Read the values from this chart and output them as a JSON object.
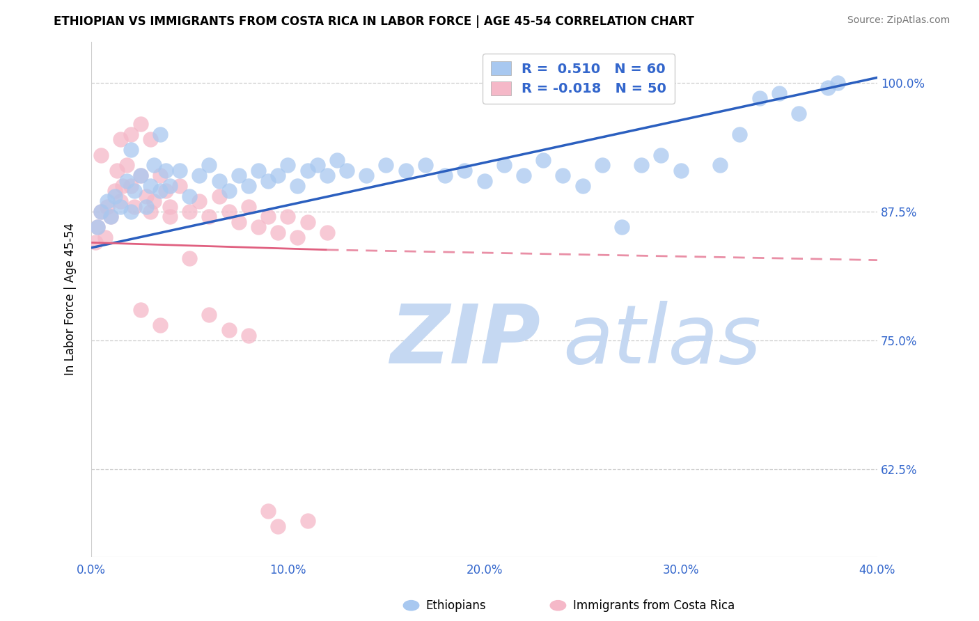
{
  "title": "ETHIOPIAN VS IMMIGRANTS FROM COSTA RICA IN LABOR FORCE | AGE 45-54 CORRELATION CHART",
  "source": "Source: ZipAtlas.com",
  "ylabel": "In Labor Force | Age 45-54",
  "xlim": [
    0.0,
    40.0
  ],
  "ylim": [
    54.0,
    104.0
  ],
  "yticks": [
    62.5,
    75.0,
    87.5,
    100.0
  ],
  "xticks": [
    0.0,
    10.0,
    20.0,
    30.0,
    40.0
  ],
  "legend_r_blue": "0.510",
  "legend_n_blue": "60",
  "legend_r_pink": "-0.018",
  "legend_n_pink": "50",
  "blue_color": "#A8C8F0",
  "pink_color": "#F5B8C8",
  "trend_blue": "#2B5FBF",
  "trend_pink": "#E06080",
  "watermark_zip": "ZIP",
  "watermark_atlas": "atlas",
  "watermark_color": "#C5D8F2",
  "blue_dots": [
    [
      0.3,
      86.0
    ],
    [
      0.5,
      87.5
    ],
    [
      0.8,
      88.5
    ],
    [
      1.0,
      87.0
    ],
    [
      1.2,
      89.0
    ],
    [
      1.5,
      88.0
    ],
    [
      1.8,
      90.5
    ],
    [
      2.0,
      87.5
    ],
    [
      2.2,
      89.5
    ],
    [
      2.5,
      91.0
    ],
    [
      2.8,
      88.0
    ],
    [
      3.0,
      90.0
    ],
    [
      3.2,
      92.0
    ],
    [
      3.5,
      89.5
    ],
    [
      3.8,
      91.5
    ],
    [
      4.0,
      90.0
    ],
    [
      4.5,
      91.5
    ],
    [
      5.0,
      89.0
    ],
    [
      5.5,
      91.0
    ],
    [
      6.0,
      92.0
    ],
    [
      6.5,
      90.5
    ],
    [
      7.0,
      89.5
    ],
    [
      7.5,
      91.0
    ],
    [
      8.0,
      90.0
    ],
    [
      8.5,
      91.5
    ],
    [
      9.0,
      90.5
    ],
    [
      9.5,
      91.0
    ],
    [
      10.0,
      92.0
    ],
    [
      10.5,
      90.0
    ],
    [
      11.0,
      91.5
    ],
    [
      11.5,
      92.0
    ],
    [
      12.0,
      91.0
    ],
    [
      12.5,
      92.5
    ],
    [
      13.0,
      91.5
    ],
    [
      14.0,
      91.0
    ],
    [
      15.0,
      92.0
    ],
    [
      16.0,
      91.5
    ],
    [
      17.0,
      92.0
    ],
    [
      18.0,
      91.0
    ],
    [
      19.0,
      91.5
    ],
    [
      20.0,
      90.5
    ],
    [
      21.0,
      92.0
    ],
    [
      22.0,
      91.0
    ],
    [
      23.0,
      92.5
    ],
    [
      24.0,
      91.0
    ],
    [
      25.0,
      90.0
    ],
    [
      26.0,
      92.0
    ],
    [
      27.0,
      86.0
    ],
    [
      28.0,
      92.0
    ],
    [
      29.0,
      93.0
    ],
    [
      30.0,
      91.5
    ],
    [
      32.0,
      92.0
    ],
    [
      33.0,
      95.0
    ],
    [
      34.0,
      98.5
    ],
    [
      35.0,
      99.0
    ],
    [
      36.0,
      97.0
    ],
    [
      37.5,
      99.5
    ],
    [
      38.0,
      100.0
    ],
    [
      3.5,
      95.0
    ],
    [
      2.0,
      93.5
    ]
  ],
  "pink_dots": [
    [
      0.2,
      84.5
    ],
    [
      0.3,
      86.0
    ],
    [
      0.5,
      87.5
    ],
    [
      0.7,
      85.0
    ],
    [
      0.8,
      88.0
    ],
    [
      1.0,
      87.0
    ],
    [
      1.2,
      89.5
    ],
    [
      1.3,
      91.5
    ],
    [
      1.5,
      88.5
    ],
    [
      1.6,
      90.0
    ],
    [
      1.8,
      92.0
    ],
    [
      2.0,
      90.0
    ],
    [
      2.2,
      88.0
    ],
    [
      2.5,
      91.0
    ],
    [
      2.8,
      89.0
    ],
    [
      3.0,
      87.5
    ],
    [
      3.2,
      88.5
    ],
    [
      3.5,
      91.0
    ],
    [
      3.8,
      89.5
    ],
    [
      4.0,
      88.0
    ],
    [
      4.5,
      90.0
    ],
    [
      5.0,
      87.5
    ],
    [
      5.5,
      88.5
    ],
    [
      6.0,
      87.0
    ],
    [
      6.5,
      89.0
    ],
    [
      7.0,
      87.5
    ],
    [
      7.5,
      86.5
    ],
    [
      8.0,
      88.0
    ],
    [
      8.5,
      86.0
    ],
    [
      9.0,
      87.0
    ],
    [
      9.5,
      85.5
    ],
    [
      10.0,
      87.0
    ],
    [
      10.5,
      85.0
    ],
    [
      11.0,
      86.5
    ],
    [
      12.0,
      85.5
    ],
    [
      1.5,
      94.5
    ],
    [
      2.0,
      95.0
    ],
    [
      2.5,
      96.0
    ],
    [
      3.0,
      94.5
    ],
    [
      0.5,
      93.0
    ],
    [
      4.0,
      87.0
    ],
    [
      5.0,
      83.0
    ],
    [
      6.0,
      77.5
    ],
    [
      7.0,
      76.0
    ],
    [
      8.0,
      75.5
    ],
    [
      2.5,
      78.0
    ],
    [
      3.5,
      76.5
    ],
    [
      9.0,
      58.5
    ],
    [
      9.5,
      57.0
    ],
    [
      11.0,
      57.5
    ]
  ],
  "trend_line_blue": [
    [
      0.0,
      84.0
    ],
    [
      40.0,
      100.5
    ]
  ],
  "trend_line_pink_solid": [
    [
      0.0,
      84.5
    ],
    [
      12.0,
      83.8
    ]
  ],
  "trend_line_pink_dash": [
    [
      12.0,
      83.8
    ],
    [
      40.0,
      82.8
    ]
  ]
}
